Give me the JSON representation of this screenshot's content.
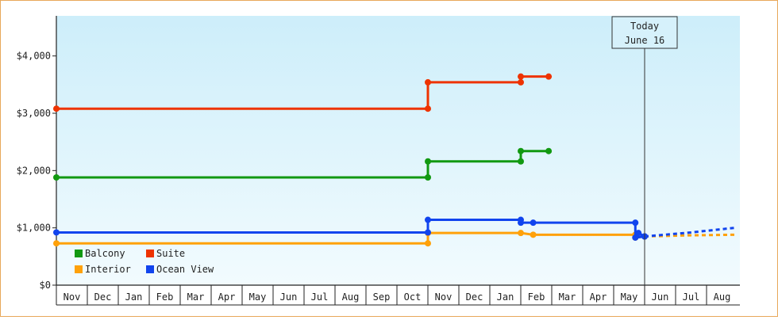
{
  "chart_data": {
    "type": "line",
    "step": true,
    "months": [
      "Nov",
      "Dec",
      "Jan",
      "Feb",
      "Mar",
      "Apr",
      "May",
      "Jun",
      "Jul",
      "Aug",
      "Sep",
      "Oct",
      "Nov",
      "Dec",
      "Jan",
      "Feb",
      "Mar",
      "Apr",
      "May",
      "Jun",
      "Jul",
      "Aug"
    ],
    "x_unit": "month index (0 = first Nov)",
    "ylim": [
      0,
      4700
    ],
    "y_ticks": [
      0,
      1000,
      2000,
      3000,
      4000
    ],
    "y_tick_labels": [
      "$0",
      "$1,000",
      "$2,000",
      "$3,000",
      "$4,000"
    ],
    "today": {
      "x": 19.0,
      "line1": "Today",
      "line2": "June 16"
    },
    "legend_position": "bottom-left",
    "series": [
      {
        "name": "Balcony",
        "color": "#119911",
        "points": [
          [
            0.0,
            1880
          ],
          [
            12.0,
            1880
          ],
          [
            12.0,
            2160
          ],
          [
            15.0,
            2160
          ],
          [
            15.0,
            2340
          ],
          [
            15.9,
            2340
          ]
        ],
        "forecast": []
      },
      {
        "name": "Suite",
        "color": "#ee3300",
        "points": [
          [
            0.0,
            3080
          ],
          [
            12.0,
            3080
          ],
          [
            12.0,
            3540
          ],
          [
            15.0,
            3540
          ],
          [
            15.0,
            3640
          ],
          [
            15.9,
            3640
          ]
        ],
        "forecast": []
      },
      {
        "name": "Interior",
        "color": "#ffa10a",
        "points": [
          [
            0.0,
            730
          ],
          [
            12.0,
            730
          ],
          [
            12.0,
            910
          ],
          [
            15.0,
            910
          ],
          [
            15.4,
            880
          ],
          [
            18.7,
            880
          ],
          [
            18.7,
            830
          ],
          [
            19.0,
            850
          ]
        ],
        "forecast": [
          [
            19.0,
            850
          ],
          [
            20.5,
            870
          ],
          [
            21.9,
            880
          ]
        ]
      },
      {
        "name": "Ocean View",
        "color": "#1144ee",
        "points": [
          [
            0.0,
            920
          ],
          [
            12.0,
            920
          ],
          [
            12.0,
            1140
          ],
          [
            15.0,
            1140
          ],
          [
            15.0,
            1090
          ],
          [
            15.4,
            1090
          ],
          [
            18.7,
            1090
          ],
          [
            18.7,
            830
          ],
          [
            19.0,
            850
          ],
          [
            18.8,
            910
          ],
          [
            19.0,
            850
          ]
        ],
        "forecast": [
          [
            19.0,
            850
          ],
          [
            20.5,
            920
          ],
          [
            21.9,
            1000
          ]
        ]
      }
    ],
    "legend_order": [
      "Balcony",
      "Suite",
      "Interior",
      "Ocean View"
    ]
  }
}
